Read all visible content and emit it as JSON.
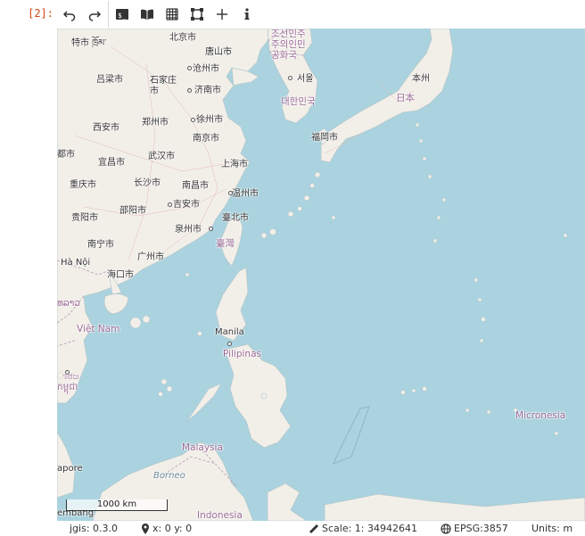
{
  "cell": {
    "prompt": "[2]:"
  },
  "toolbar": {
    "buttons": [
      {
        "name": "undo",
        "icon": "undo-icon"
      },
      {
        "name": "redo",
        "icon": "redo-icon"
      },
      {
        "name": "terminal",
        "icon": "terminal-icon"
      },
      {
        "name": "layers",
        "icon": "open-book-icon"
      },
      {
        "name": "grid",
        "icon": "grid-icon"
      },
      {
        "name": "extent",
        "icon": "vector-square-icon"
      },
      {
        "name": "add",
        "icon": "plus-icon"
      },
      {
        "name": "info",
        "icon": "info-icon"
      }
    ]
  },
  "map": {
    "colors": {
      "water": "#aad3df",
      "land": "#f2efe9",
      "border": "#b59bb5"
    },
    "labels": {
      "tibet": "特市 ཁྲོམ་",
      "beijing": "北京市",
      "tangshan": "唐山市",
      "cangzhou": "沧州市",
      "lvliang": "吕梁市",
      "shijiazhuang": "石家庄\n市",
      "jinan": "济南市",
      "xuzhou": "徐州市",
      "zhengzhou": "郑州市",
      "xian": "西安市",
      "nanjing": "南京市",
      "dushi": "都市",
      "yichang": "宜昌市",
      "wuhan": "武汉市",
      "shanghai": "上海市",
      "chongqing": "重庆市",
      "changsha": "长沙市",
      "nanchang": "南昌市",
      "wenzhou": "温州市",
      "shaoyang": "邵阳市",
      "jian": "吉安市",
      "guiyang": "贵阳市",
      "taipei": "臺北市",
      "quanzhou": "泉州市",
      "taiwan": "臺灣",
      "nanning": "南宁市",
      "guangzhou": "广州市",
      "hanoi": "Hà Nội",
      "haikou": "海口市",
      "laos": "ທລາວ",
      "vietnam": "Việt Nam",
      "manila": "Manila",
      "pilipinas": "Pilipinas",
      "cambodia": "ಾಠಜ\nកម្ពុជា",
      "korea_top": "조선민주\n주의인민\n공화국",
      "seoul": "서울",
      "daehan": "대한민국",
      "fukuoka": "福岡市",
      "honshu": "本州",
      "nihon": "日本",
      "micronesia": "Micronesia",
      "malaysia": "Malaysia",
      "borneo": "Borneo",
      "singapore": "apore",
      "indonesia": "Indonesia",
      "embang": "embang"
    },
    "scale_bar": "1000 km"
  },
  "status": {
    "version": "jgis: 0.3.0",
    "coords": "x: 0 y: 0",
    "scale": "Scale: 1: 34942641",
    "epsg": "EPSG:3857",
    "units": "Units: m"
  }
}
